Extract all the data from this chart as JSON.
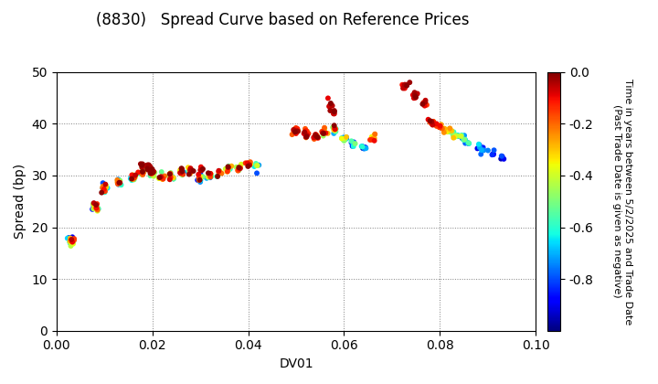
{
  "title": "(8830)   Spread Curve based on Reference Prices",
  "xlabel": "DV01",
  "ylabel": "Spread (bp)",
  "xlim": [
    0.0,
    0.1
  ],
  "ylim": [
    0,
    50
  ],
  "xticks": [
    0.0,
    0.02,
    0.04,
    0.06,
    0.08,
    0.1
  ],
  "yticks": [
    0,
    10,
    20,
    30,
    40,
    50
  ],
  "colorbar_label": "Time in years between 5/2/2025 and Trade Date\n(Past Trade Date is given as negative)",
  "colorbar_ticks": [
    0.0,
    -0.2,
    -0.4,
    -0.6,
    -0.8
  ],
  "cmap": "jet",
  "vmin": -1.0,
  "vmax": 0.0,
  "marker_size": 18,
  "bonds": [
    {
      "dv01": 0.003,
      "spread": 17.5,
      "t_min": -0.95,
      "t_max": -0.05,
      "n": 20
    },
    {
      "dv01": 0.008,
      "spread": 24.0,
      "t_min": -0.9,
      "t_max": -0.02,
      "n": 22
    },
    {
      "dv01": 0.01,
      "spread": 27.5,
      "t_min": -0.85,
      "t_max": -0.01,
      "n": 18
    },
    {
      "dv01": 0.013,
      "spread": 28.5,
      "t_min": -0.8,
      "t_max": -0.01,
      "n": 16
    },
    {
      "dv01": 0.016,
      "spread": 29.5,
      "t_min": -0.7,
      "t_max": -0.01,
      "n": 16
    },
    {
      "dv01": 0.018,
      "spread": 30.5,
      "t_min": -0.65,
      "t_max": -0.01,
      "n": 14
    },
    {
      "dv01": 0.02,
      "spread": 30.5,
      "t_min": -0.6,
      "t_max": -0.01,
      "n": 14
    },
    {
      "dv01": 0.022,
      "spread": 29.5,
      "t_min": -0.85,
      "t_max": -0.01,
      "n": 14
    },
    {
      "dv01": 0.024,
      "spread": 30.0,
      "t_min": -0.8,
      "t_max": -0.01,
      "n": 14
    },
    {
      "dv01": 0.026,
      "spread": 30.5,
      "t_min": -0.75,
      "t_max": -0.01,
      "n": 12
    },
    {
      "dv01": 0.028,
      "spread": 31.0,
      "t_min": -0.7,
      "t_max": -0.01,
      "n": 12
    },
    {
      "dv01": 0.03,
      "spread": 29.5,
      "t_min": -0.9,
      "t_max": -0.01,
      "n": 12
    },
    {
      "dv01": 0.032,
      "spread": 30.0,
      "t_min": -0.85,
      "t_max": -0.01,
      "n": 12
    },
    {
      "dv01": 0.034,
      "spread": 30.5,
      "t_min": -0.75,
      "t_max": -0.01,
      "n": 12
    },
    {
      "dv01": 0.036,
      "spread": 31.2,
      "t_min": -0.6,
      "t_max": -0.01,
      "n": 10
    },
    {
      "dv01": 0.038,
      "spread": 31.5,
      "t_min": -0.5,
      "t_max": -0.01,
      "n": 10
    },
    {
      "dv01": 0.04,
      "spread": 32.0,
      "t_min": -0.4,
      "t_max": -0.01,
      "n": 10
    },
    {
      "dv01": 0.042,
      "spread": 31.5,
      "t_min": -0.8,
      "t_max": -0.4,
      "n": 6
    },
    {
      "dv01": 0.018,
      "spread": 32.0,
      "t_min": -0.05,
      "t_max": -0.01,
      "n": 5
    },
    {
      "dv01": 0.019,
      "spread": 31.5,
      "t_min": -0.05,
      "t_max": -0.01,
      "n": 5
    },
    {
      "dv01": 0.02,
      "spread": 31.0,
      "t_min": -0.05,
      "t_max": -0.01,
      "n": 4
    },
    {
      "dv01": 0.026,
      "spread": 31.5,
      "t_min": -0.08,
      "t_max": -0.01,
      "n": 4
    },
    {
      "dv01": 0.028,
      "spread": 30.8,
      "t_min": -0.08,
      "t_max": -0.01,
      "n": 4
    },
    {
      "dv01": 0.03,
      "spread": 31.0,
      "t_min": -0.1,
      "t_max": -0.01,
      "n": 4
    },
    {
      "dv01": 0.05,
      "spread": 38.5,
      "t_min": -0.3,
      "t_max": -0.01,
      "n": 16
    },
    {
      "dv01": 0.052,
      "spread": 38.0,
      "t_min": -0.25,
      "t_max": -0.01,
      "n": 14
    },
    {
      "dv01": 0.054,
      "spread": 37.5,
      "t_min": -0.2,
      "t_max": -0.01,
      "n": 12
    },
    {
      "dv01": 0.056,
      "spread": 38.5,
      "t_min": -0.5,
      "t_max": -0.01,
      "n": 12
    },
    {
      "dv01": 0.058,
      "spread": 39.0,
      "t_min": -0.7,
      "t_max": -0.01,
      "n": 10
    },
    {
      "dv01": 0.06,
      "spread": 37.0,
      "t_min": -0.85,
      "t_max": -0.3,
      "n": 10
    },
    {
      "dv01": 0.062,
      "spread": 36.0,
      "t_min": -0.9,
      "t_max": -0.5,
      "n": 8
    },
    {
      "dv01": 0.064,
      "spread": 35.5,
      "t_min": -0.95,
      "t_max": -0.6,
      "n": 8
    },
    {
      "dv01": 0.057,
      "spread": 43.5,
      "t_min": -0.15,
      "t_max": -0.01,
      "n": 8
    },
    {
      "dv01": 0.058,
      "spread": 42.0,
      "t_min": -0.1,
      "t_max": -0.01,
      "n": 6
    },
    {
      "dv01": 0.066,
      "spread": 37.5,
      "t_min": -0.35,
      "t_max": -0.1,
      "n": 8
    },
    {
      "dv01": 0.073,
      "spread": 47.5,
      "t_min": -0.12,
      "t_max": -0.01,
      "n": 8
    },
    {
      "dv01": 0.075,
      "spread": 45.5,
      "t_min": -0.1,
      "t_max": -0.01,
      "n": 8
    },
    {
      "dv01": 0.077,
      "spread": 44.0,
      "t_min": -0.15,
      "t_max": -0.01,
      "n": 6
    },
    {
      "dv01": 0.078,
      "spread": 40.5,
      "t_min": -0.2,
      "t_max": -0.01,
      "n": 8
    },
    {
      "dv01": 0.079,
      "spread": 40.0,
      "t_min": -0.25,
      "t_max": -0.1,
      "n": 6
    },
    {
      "dv01": 0.08,
      "spread": 39.5,
      "t_min": -0.3,
      "t_max": -0.1,
      "n": 6
    },
    {
      "dv01": 0.081,
      "spread": 39.0,
      "t_min": -0.4,
      "t_max": -0.2,
      "n": 6
    },
    {
      "dv01": 0.082,
      "spread": 38.5,
      "t_min": -0.5,
      "t_max": -0.25,
      "n": 6
    },
    {
      "dv01": 0.083,
      "spread": 38.0,
      "t_min": -0.6,
      "t_max": -0.3,
      "n": 6
    },
    {
      "dv01": 0.084,
      "spread": 37.5,
      "t_min": -0.7,
      "t_max": -0.4,
      "n": 6
    },
    {
      "dv01": 0.085,
      "spread": 37.0,
      "t_min": -0.8,
      "t_max": -0.5,
      "n": 5
    },
    {
      "dv01": 0.086,
      "spread": 36.5,
      "t_min": -0.85,
      "t_max": -0.55,
      "n": 5
    },
    {
      "dv01": 0.088,
      "spread": 35.5,
      "t_min": -0.9,
      "t_max": -0.65,
      "n": 5
    },
    {
      "dv01": 0.089,
      "spread": 35.0,
      "t_min": -0.85,
      "t_max": -0.7,
      "n": 5
    },
    {
      "dv01": 0.091,
      "spread": 34.5,
      "t_min": -0.92,
      "t_max": -0.75,
      "n": 5
    },
    {
      "dv01": 0.093,
      "spread": 33.5,
      "t_min": -0.95,
      "t_max": -0.8,
      "n": 4
    }
  ]
}
